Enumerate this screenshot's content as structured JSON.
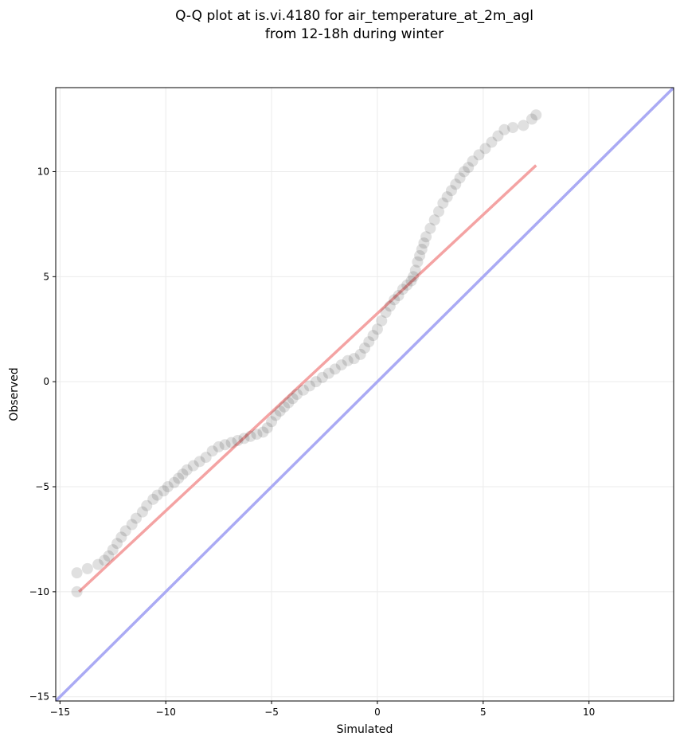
{
  "chart_data": {
    "type": "scatter",
    "title_lines": [
      "Q-Q plot at is.vi.4180 for air_temperature_at_2m_agl",
      "from 12-18h during winter"
    ],
    "xlabel": "Simulated",
    "ylabel": "Observed",
    "xlim": [
      -15.2,
      14.0
    ],
    "ylim": [
      -15.2,
      14.0
    ],
    "xticks": [
      -15,
      -10,
      -5,
      0,
      5,
      10
    ],
    "yticks": [
      -15,
      -10,
      -5,
      0,
      5,
      10
    ],
    "tick_labels_x": [
      "−15",
      "−10",
      "−5",
      "0",
      "5",
      "10"
    ],
    "tick_labels_y": [
      "−15",
      "−10",
      "−5",
      "0",
      "5",
      "10"
    ],
    "grid": true,
    "series": [
      {
        "kind": "points",
        "color": "#000000",
        "x": [
          -14.2,
          -14.2,
          -13.7,
          -13.2,
          -12.9,
          -12.7,
          -12.5,
          -12.3,
          -12.1,
          -11.9,
          -11.6,
          -11.4,
          -11.1,
          -10.9,
          -10.6,
          -10.4,
          -10.1,
          -9.9,
          -9.6,
          -9.4,
          -9.2,
          -9.0,
          -8.7,
          -8.4,
          -8.1,
          -7.8,
          -7.5,
          -7.2,
          -6.9,
          -6.6,
          -6.3,
          -6.0,
          -5.7,
          -5.4,
          -5.2,
          -5.0,
          -4.8,
          -4.6,
          -4.4,
          -4.2,
          -4.0,
          -3.8,
          -3.5,
          -3.2,
          -2.9,
          -2.6,
          -2.3,
          -2.0,
          -1.7,
          -1.4,
          -1.1,
          -0.8,
          -0.6,
          -0.4,
          -0.2,
          0.0,
          0.2,
          0.4,
          0.6,
          0.8,
          1.0,
          1.2,
          1.4,
          1.6,
          1.7,
          1.8,
          1.9,
          2.0,
          2.1,
          2.2,
          2.3,
          2.5,
          2.7,
          2.9,
          3.1,
          3.3,
          3.5,
          3.7,
          3.9,
          4.1,
          4.3,
          4.5,
          4.8,
          5.1,
          5.4,
          5.7,
          6.0,
          6.4,
          6.9,
          7.3,
          7.5
        ],
        "y": [
          -10.0,
          -9.1,
          -8.9,
          -8.7,
          -8.5,
          -8.3,
          -8.0,
          -7.7,
          -7.4,
          -7.1,
          -6.8,
          -6.5,
          -6.2,
          -5.9,
          -5.6,
          -5.4,
          -5.2,
          -5.0,
          -4.8,
          -4.6,
          -4.4,
          -4.2,
          -4.0,
          -3.8,
          -3.6,
          -3.3,
          -3.1,
          -3.0,
          -2.9,
          -2.8,
          -2.7,
          -2.6,
          -2.5,
          -2.4,
          -2.2,
          -1.9,
          -1.6,
          -1.4,
          -1.2,
          -1.0,
          -0.8,
          -0.6,
          -0.4,
          -0.2,
          0.0,
          0.2,
          0.4,
          0.6,
          0.8,
          1.0,
          1.1,
          1.3,
          1.6,
          1.9,
          2.2,
          2.5,
          2.9,
          3.3,
          3.6,
          3.9,
          4.1,
          4.4,
          4.6,
          4.8,
          5.0,
          5.3,
          5.7,
          6.0,
          6.3,
          6.6,
          6.9,
          7.3,
          7.7,
          8.1,
          8.5,
          8.8,
          9.1,
          9.4,
          9.7,
          10.0,
          10.2,
          10.5,
          10.8,
          11.1,
          11.4,
          11.7,
          12.0,
          12.1,
          12.2,
          12.5,
          12.7
        ]
      },
      {
        "kind": "fit-line",
        "color": "#f4a3a3",
        "x": [
          -14.1,
          7.5
        ],
        "y": [
          -10.0,
          10.3
        ]
      },
      {
        "kind": "reference-line",
        "color": "#aaaaf4",
        "x": [
          -15.2,
          14.0
        ],
        "y": [
          -15.2,
          14.0
        ]
      }
    ]
  }
}
